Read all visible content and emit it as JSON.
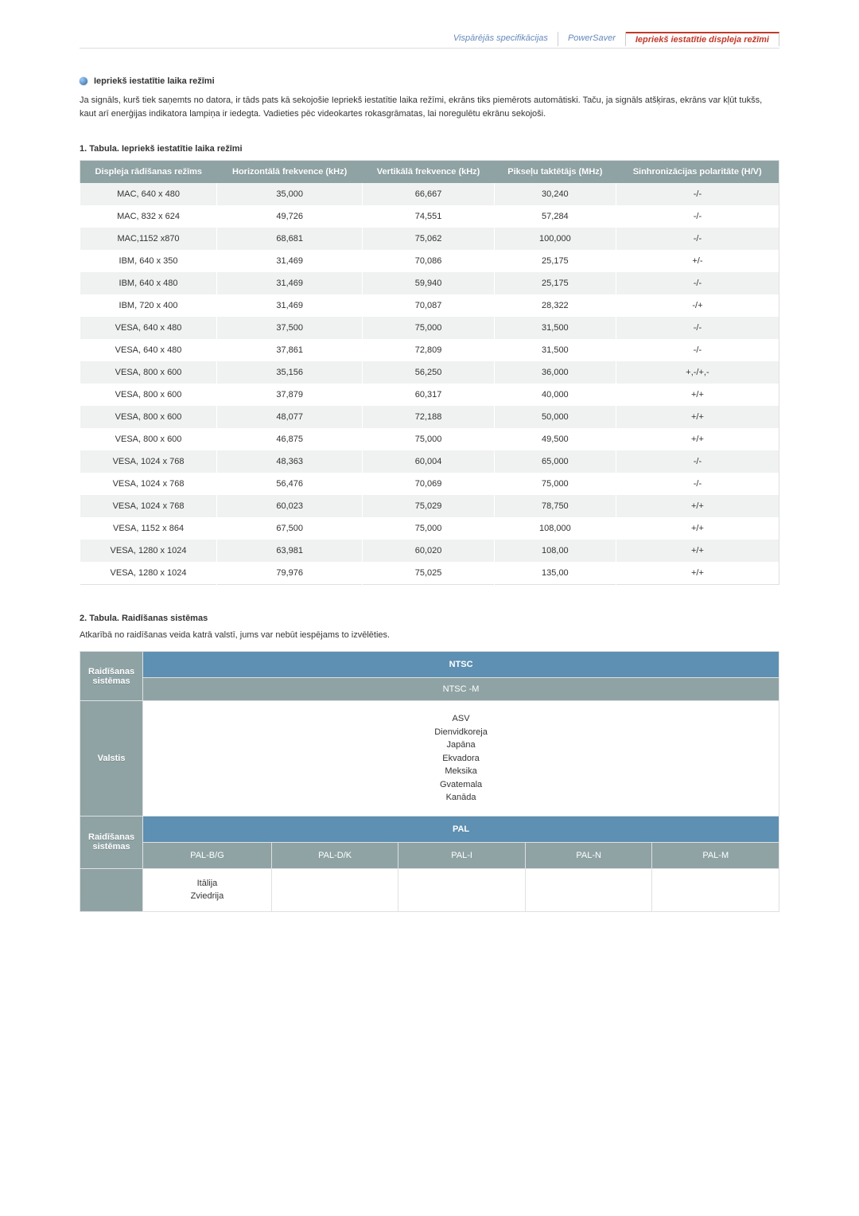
{
  "tabs": {
    "general": "Vispārējās specifikācijas",
    "powersaver": "PowerSaver",
    "preset": "Iepriekš iestatītie displeja režīmi"
  },
  "section": {
    "title": "Iepriekš iestatītie laika režīmi",
    "body": "Ja signāls, kurš tiek saņemts no datora, ir tāds pats kā sekojošie Iepriekš iestatītie laika režīmi, ekrāns tiks piemērots automātiski. Taču, ja signāls atšķiras, ekrāns var kļūt tukšs, kaut arī enerģijas indikatora lampiņa ir iedegta. Vadieties pēc videokartes rokasgrāmatas, lai noregulētu ekrānu sekojoši."
  },
  "table1": {
    "title": "1. Tabula. Iepriekš iestatītie laika režīmi",
    "headers": {
      "mode": "Displeja rādīšanas režīms",
      "hfreq": "Horizontālā frekvence (kHz)",
      "vfreq": "Vertikālā frekvence (kHz)",
      "pixel": "Pikseļu taktētājs (MHz)",
      "sync": "Sinhronizācijas polaritāte (H/V)"
    },
    "rows": [
      {
        "mode": "MAC, 640 x 480",
        "h": "35,000",
        "v": "66,667",
        "p": "30,240",
        "s": "-/-"
      },
      {
        "mode": "MAC, 832 x 624",
        "h": "49,726",
        "v": "74,551",
        "p": "57,284",
        "s": "-/-"
      },
      {
        "mode": "MAC,1152 x870",
        "h": "68,681",
        "v": "75,062",
        "p": "100,000",
        "s": "-/-"
      },
      {
        "mode": "IBM, 640 x 350",
        "h": "31,469",
        "v": "70,086",
        "p": "25,175",
        "s": "+/-"
      },
      {
        "mode": "IBM, 640 x 480",
        "h": "31,469",
        "v": "59,940",
        "p": "25,175",
        "s": "-/-"
      },
      {
        "mode": "IBM, 720 x 400",
        "h": "31,469",
        "v": "70,087",
        "p": "28,322",
        "s": "-/+"
      },
      {
        "mode": "VESA, 640 x 480",
        "h": "37,500",
        "v": "75,000",
        "p": "31,500",
        "s": "-/-"
      },
      {
        "mode": "VESA, 640 x 480",
        "h": "37,861",
        "v": "72,809",
        "p": "31,500",
        "s": "-/-"
      },
      {
        "mode": "VESA, 800 x 600",
        "h": "35,156",
        "v": "56,250",
        "p": "36,000",
        "s": "+,-/+,-"
      },
      {
        "mode": "VESA, 800 x 600",
        "h": "37,879",
        "v": "60,317",
        "p": "40,000",
        "s": "+/+"
      },
      {
        "mode": "VESA, 800 x 600",
        "h": "48,077",
        "v": "72,188",
        "p": "50,000",
        "s": "+/+"
      },
      {
        "mode": "VESA, 800 x 600",
        "h": "46,875",
        "v": "75,000",
        "p": "49,500",
        "s": "+/+"
      },
      {
        "mode": "VESA, 1024 x 768",
        "h": "48,363",
        "v": "60,004",
        "p": "65,000",
        "s": "-/-"
      },
      {
        "mode": "VESA, 1024 x 768",
        "h": "56,476",
        "v": "70,069",
        "p": "75,000",
        "s": "-/-"
      },
      {
        "mode": "VESA, 1024 x 768",
        "h": "60,023",
        "v": "75,029",
        "p": "78,750",
        "s": "+/+"
      },
      {
        "mode": "VESA, 1152 x 864",
        "h": "67,500",
        "v": "75,000",
        "p": "108,000",
        "s": "+/+"
      },
      {
        "mode": "VESA, 1280 x 1024",
        "h": "63,981",
        "v": "60,020",
        "p": "108,00",
        "s": "+/+"
      },
      {
        "mode": "VESA, 1280 x 1024",
        "h": "79,976",
        "v": "75,025",
        "p": "135,00",
        "s": "+/+"
      }
    ]
  },
  "table2": {
    "title": "2. Tabula. Raidīšanas sistēmas",
    "subtitle": "Atkarībā no raidīšanas veida katrā valstī, jums var nebūt iespējams to izvēlēties.",
    "labels": {
      "systems": "Raidīšanas sistēmas",
      "countries": "Valstis",
      "systems2": "Raidīšanas sistēmas"
    },
    "ntsc": {
      "head": "NTSC",
      "sub": "NTSC -M",
      "countries": "ASV\nDienvidkoreja\nJapāna\nEkvadora\nMeksika\nGvatemala\nKanāda"
    },
    "pal": {
      "head": "PAL",
      "subs": [
        "PAL-B/G",
        "PAL-D/K",
        "PAL-I",
        "PAL-N",
        "PAL-M"
      ],
      "countries": [
        "Itālija\nZviedrija",
        "",
        "",
        "",
        ""
      ]
    }
  }
}
